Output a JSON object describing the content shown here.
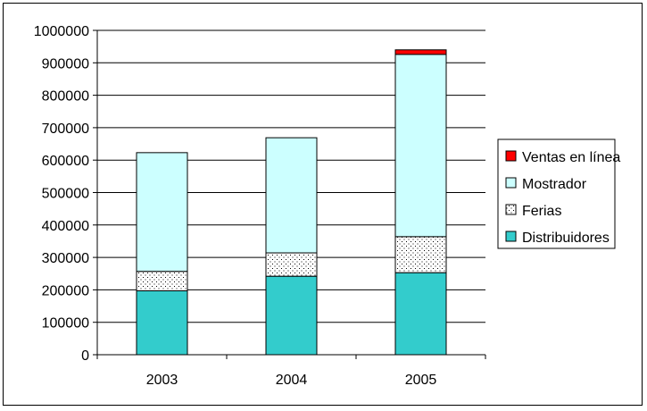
{
  "chart_data": {
    "type": "bar",
    "stacked": true,
    "categories": [
      "2003",
      "2004",
      "2005"
    ],
    "series": [
      {
        "name": "Distribuidores",
        "values": [
          197000,
          242000,
          253000
        ],
        "color": "#33CCCC",
        "pattern": "solid"
      },
      {
        "name": "Ferias",
        "values": [
          60000,
          72000,
          111000
        ],
        "color": "#FFFFFF",
        "pattern": "dots"
      },
      {
        "name": "Mostrador",
        "values": [
          366000,
          355000,
          562000
        ],
        "color": "#CCFFFF",
        "pattern": "solid"
      },
      {
        "name": "Ventas en línea",
        "values": [
          0,
          0,
          14000
        ],
        "color": "#FF0000",
        "pattern": "solid"
      }
    ],
    "yticks": [
      "0",
      "100000",
      "200000",
      "300000",
      "400000",
      "500000",
      "600000",
      "700000",
      "800000",
      "900000",
      "1000000"
    ],
    "ylim": [
      0,
      1000000
    ],
    "grid": true,
    "legend_position": "right",
    "title": "",
    "xlabel": "",
    "ylabel": ""
  }
}
